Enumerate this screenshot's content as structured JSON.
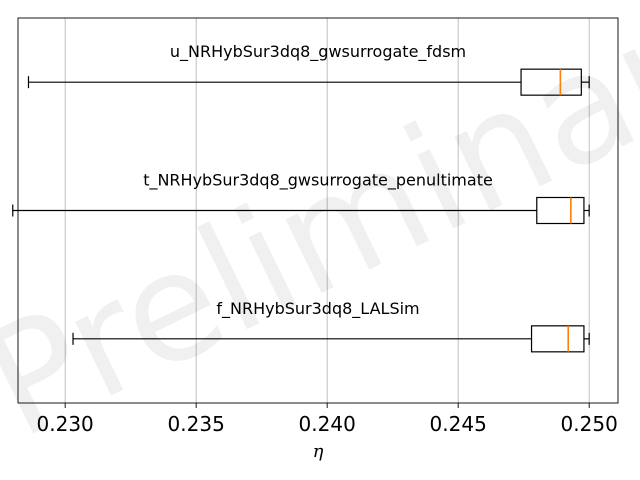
{
  "watermark_text": "Preliminary",
  "chart_data": {
    "type": "box",
    "orientation": "horizontal",
    "xlabel": "η",
    "xlim": [
      0.2282,
      0.2511
    ],
    "x_ticks": [
      0.23,
      0.235,
      0.24,
      0.245,
      0.25
    ],
    "x_tick_labels": [
      "0.230",
      "0.235",
      "0.240",
      "0.245",
      "0.250"
    ],
    "grid": "vertical",
    "colors": {
      "box": "#000000",
      "median": "#ff7f0e",
      "grid": "#b0b0b0"
    },
    "series": [
      {
        "name": "u_NRHybSur3dq8_gwsurrogate_fdsm",
        "whisker_low": 0.2286,
        "q1": 0.2474,
        "median": 0.2489,
        "q3": 0.2497,
        "whisker_high": 0.25
      },
      {
        "name": "t_NRHybSur3dq8_gwsurrogate_penultimate",
        "whisker_low": 0.228,
        "q1": 0.248,
        "median": 0.2493,
        "q3": 0.2498,
        "whisker_high": 0.25
      },
      {
        "name": "f_NRHybSur3dq8_LALSim",
        "whisker_low": 0.2303,
        "q1": 0.2478,
        "median": 0.2492,
        "q3": 0.2498,
        "whisker_high": 0.25
      }
    ]
  }
}
